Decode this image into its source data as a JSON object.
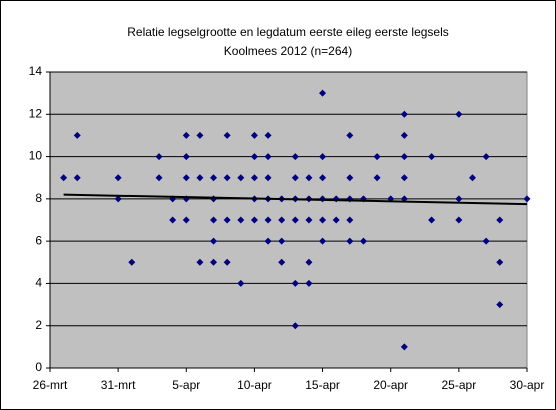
{
  "chart_data": {
    "type": "scatter",
    "title": "Relatie legselgrootte en legdatum eerste eileg eerste legsels",
    "subtitle": "Koolmees 2012 (n=264)",
    "x": [
      87,
      88,
      88,
      91,
      91,
      92,
      94,
      94,
      95,
      95,
      96,
      96,
      96,
      96,
      96,
      97,
      97,
      97,
      98,
      98,
      98,
      98,
      98,
      99,
      99,
      99,
      99,
      100,
      100,
      100,
      101,
      101,
      101,
      101,
      101,
      102,
      102,
      102,
      102,
      102,
      102,
      103,
      103,
      103,
      103,
      104,
      104,
      104,
      104,
      104,
      104,
      105,
      105,
      105,
      105,
      105,
      106,
      106,
      106,
      106,
      106,
      106,
      107,
      107,
      108,
      108,
      108,
      108,
      108,
      109,
      109,
      110,
      110,
      111,
      112,
      112,
      112,
      112,
      112,
      112,
      114,
      114,
      116,
      116,
      116,
      117,
      118,
      118,
      119,
      119,
      119,
      121
    ],
    "values": [
      9,
      9,
      11,
      9,
      8,
      5,
      10,
      9,
      8,
      7,
      11,
      10,
      9,
      8,
      7,
      11,
      9,
      5,
      9,
      8,
      7,
      6,
      5,
      11,
      9,
      7,
      5,
      9,
      7,
      4,
      11,
      10,
      9,
      8,
      7,
      11,
      10,
      9,
      8,
      7,
      6,
      8,
      7,
      6,
      5,
      10,
      9,
      8,
      7,
      4,
      2,
      9,
      8,
      7,
      5,
      4,
      13,
      10,
      9,
      8,
      7,
      6,
      8,
      7,
      11,
      9,
      8,
      7,
      6,
      8,
      6,
      10,
      9,
      8,
      12,
      11,
      10,
      9,
      8,
      1,
      10,
      7,
      12,
      8,
      7,
      9,
      10,
      6,
      7,
      5,
      3,
      8
    ],
    "color": "#000080",
    "trendline": {
      "x": [
        87,
        121
      ],
      "values": [
        8.2,
        7.75
      ],
      "color": "#000000"
    },
    "xlim": [
      86,
      121
    ],
    "xticks": [
      {
        "value": 86,
        "label": "26-mrt"
      },
      {
        "value": 91,
        "label": "31-mrt"
      },
      {
        "value": 96,
        "label": "5-apr"
      },
      {
        "value": 101,
        "label": "10-apr"
      },
      {
        "value": 106,
        "label": "15-apr"
      },
      {
        "value": 111,
        "label": "20-apr"
      },
      {
        "value": 116,
        "label": "25-apr"
      },
      {
        "value": 121,
        "label": "30-apr"
      }
    ],
    "ylim": [
      0,
      14
    ],
    "yticks": [
      0,
      2,
      4,
      6,
      8,
      10,
      12,
      14
    ],
    "grid": true
  }
}
